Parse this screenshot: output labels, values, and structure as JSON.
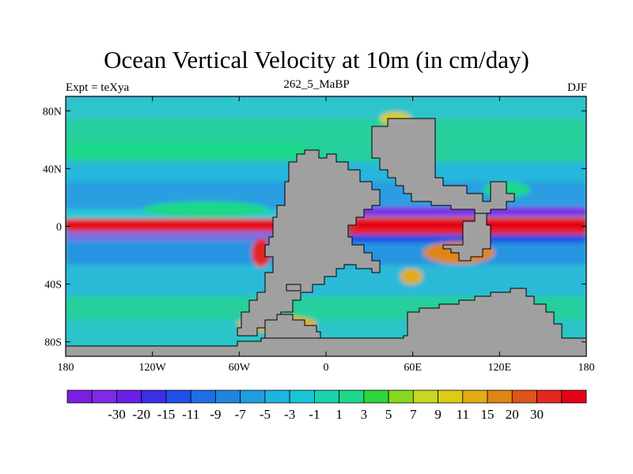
{
  "title": "Ocean Vertical Velocity at 10m (in cm/day)",
  "subtitle_left": "Expt = teXya",
  "subtitle_center": "262_5_MaBP",
  "subtitle_right": "DJF",
  "map": {
    "lon_range": [
      -180,
      180
    ],
    "lat_range": [
      -90,
      90
    ],
    "x_ticks": [
      {
        "value": -180,
        "label": "180"
      },
      {
        "value": -120,
        "label": "120W"
      },
      {
        "value": -60,
        "label": "60W"
      },
      {
        "value": 0,
        "label": "0"
      },
      {
        "value": 60,
        "label": "60E"
      },
      {
        "value": 120,
        "label": "120E"
      },
      {
        "value": 180,
        "label": "180"
      }
    ],
    "y_ticks": [
      {
        "value": 80,
        "label": "80N"
      },
      {
        "value": 40,
        "label": "40N"
      },
      {
        "value": 0,
        "label": "0"
      },
      {
        "value": -40,
        "label": "40S"
      },
      {
        "value": -80,
        "label": "80S"
      }
    ],
    "land_color": "#a0a0a0",
    "ocean_color": "#33b9d4"
  },
  "colorbar": {
    "colors": [
      "#7a1ee0",
      "#7f2ae6",
      "#6a20e8",
      "#3a2ee6",
      "#1f50e8",
      "#1e6ee6",
      "#1e86e0",
      "#1e9ede",
      "#1eb4e0",
      "#19c6d8",
      "#19d2b0",
      "#1ed889",
      "#2ed53c",
      "#86d91e",
      "#c7d81e",
      "#ddcc14",
      "#e2ac14",
      "#e08614",
      "#df5418",
      "#e42820",
      "#e60018"
    ],
    "labels": [
      "-30",
      "-20",
      "-15",
      "-11",
      "-9",
      "-7",
      "-5",
      "-3",
      "-1",
      "1",
      "3",
      "5",
      "7",
      "9",
      "11",
      "15",
      "20",
      "30"
    ]
  }
}
